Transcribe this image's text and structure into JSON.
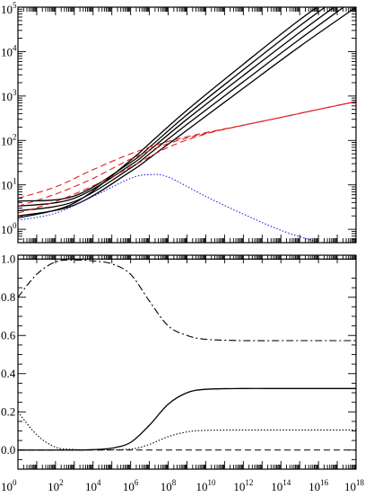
{
  "chart_data": [
    {
      "type": "line",
      "panel": "top",
      "title": "",
      "xlabel": "",
      "ylabel": "",
      "xscale": "log",
      "yscale": "log",
      "xlim": [
        1,
        1e+18
      ],
      "ylim": [
        0.5,
        100000
      ],
      "x_tick_labels": [],
      "y_tick_labels": [
        {
          "value": 1,
          "base": "10",
          "exp": "0"
        },
        {
          "value": 10,
          "base": "10",
          "exp": "1"
        },
        {
          "value": 100,
          "base": "10",
          "exp": "2"
        },
        {
          "value": 1000,
          "base": "10",
          "exp": "3"
        },
        {
          "value": 10000,
          "base": "10",
          "exp": "4"
        },
        {
          "value": 100000,
          "base": "10",
          "exp": "5"
        }
      ],
      "grid": false,
      "series": [
        {
          "style": "solid",
          "color": "#000000",
          "x": [
            1,
            1000.0,
            1000000.0,
            10000000.0,
            1000000000.0,
            1000000000000.0,
            1000000000000000.0,
            1e+18
          ],
          "y": [
            2.0,
            3.5,
            20,
            40,
            170,
            1500,
            13000,
            100000
          ]
        },
        {
          "style": "solid",
          "color": "#000000",
          "x": [
            1,
            1000.0,
            1000000.0,
            10000000.0,
            1000000000.0,
            1000000000000.0,
            1000000000000000.0,
            1e+18
          ],
          "y": [
            2.6,
            4.2,
            24,
            50,
            230,
            2100,
            19000,
            160000
          ]
        },
        {
          "style": "solid",
          "color": "#000000",
          "x": [
            1,
            1000.0,
            1000000.0,
            10000000.0,
            1000000000.0,
            1000000000000.0,
            1000000000000000.0,
            1e+18
          ],
          "y": [
            3.3,
            5.0,
            28,
            60,
            300,
            2900,
            27000,
            230000
          ]
        },
        {
          "style": "solid",
          "color": "#000000",
          "x": [
            1,
            1000.0,
            1000000.0,
            10000000.0,
            1000000000.0,
            1000000000000.0,
            1000000000000000.0,
            1e+18
          ],
          "y": [
            4.3,
            5.6,
            32,
            70,
            380,
            3900,
            38000,
            320000
          ]
        },
        {
          "style": "solid",
          "color": "#000000",
          "x": [
            1,
            1000.0,
            1000000.0,
            10000000.0,
            1000000000.0,
            1000000000000.0,
            1000000000000000.0,
            1e+18
          ],
          "y": [
            1.8,
            3.9,
            36,
            85,
            480,
            5200,
            52000,
            420000
          ]
        },
        {
          "style": "dashed",
          "color": "#e02020",
          "x": [
            1,
            100.0,
            10000.0,
            1000000.0,
            100000000.0,
            10000000000.0,
            1000000000000.0,
            100000000000000.0,
            1e+16,
            1e+18
          ],
          "y": [
            5.0,
            9.0,
            22,
            50,
            95,
            150,
            220,
            330,
            500,
            750
          ]
        },
        {
          "style": "dashed",
          "color": "#e02020",
          "x": [
            1,
            100.0,
            10000.0,
            1000000.0,
            100000000.0,
            10000000000.0,
            1000000000000.0,
            100000000000000.0,
            1e+16,
            1e+18
          ],
          "y": [
            3.3,
            6.2,
            14,
            38,
            85,
            145,
            220,
            330,
            500,
            750
          ]
        },
        {
          "style": "dashed",
          "color": "#e02020",
          "x": [
            1,
            100.0,
            10000.0,
            1000000.0,
            100000000.0,
            10000000000.0,
            1000000000000.0,
            100000000000000.0,
            1e+16,
            1e+18
          ],
          "y": [
            2.3,
            4.2,
            9.5,
            25,
            70,
            140,
            220,
            330,
            500,
            750
          ]
        },
        {
          "style": "dotted",
          "color": "#2020e0",
          "x": [
            1,
            100.0,
            10000.0,
            1000000.0,
            10000000.0,
            100000000.0,
            10000000000.0,
            1000000000000.0,
            100000000000000.0,
            1e+16,
            1e+17
          ],
          "y": [
            1.6,
            2.3,
            5.5,
            14,
            17,
            15,
            5.5,
            2.2,
            0.95,
            0.5,
            0.33
          ]
        }
      ]
    },
    {
      "type": "line",
      "panel": "bottom",
      "title": "",
      "xlabel": "",
      "ylabel": "",
      "xscale": "log",
      "yscale": "linear",
      "xlim": [
        1,
        1e+18
      ],
      "ylim": [
        -0.1,
        1.02
      ],
      "x_tick_labels": [
        {
          "value": 1,
          "base": "10",
          "exp": "0"
        },
        {
          "value": 100,
          "base": "10",
          "exp": "2"
        },
        {
          "value": 10000,
          "base": "10",
          "exp": "4"
        },
        {
          "value": 1000000,
          "base": "10",
          "exp": "6"
        },
        {
          "value": 100000000,
          "base": "10",
          "exp": "8"
        },
        {
          "value": 10000000000,
          "base": "10",
          "exp": "10"
        },
        {
          "value": 1000000000000,
          "base": "10",
          "exp": "12"
        },
        {
          "value": 100000000000000,
          "base": "10",
          "exp": "14"
        },
        {
          "value": 10000000000000000,
          "base": "10",
          "exp": "16"
        },
        {
          "value": 1000000000000000000,
          "base": "10",
          "exp": "18"
        }
      ],
      "y_tick_labels": [
        {
          "value": 0.0,
          "text": "0.0"
        },
        {
          "value": 0.2,
          "text": "0.2"
        },
        {
          "value": 0.4,
          "text": "0.4"
        },
        {
          "value": 0.6,
          "text": "0.6"
        },
        {
          "value": 0.8,
          "text": "0.8"
        },
        {
          "value": 1.0,
          "text": "1.0"
        }
      ],
      "grid": false,
      "series": [
        {
          "style": "solid",
          "color": "#000000",
          "x": [
            1,
            1e+18
          ],
          "y": [
            1.0,
            1.0
          ]
        },
        {
          "style": "dashdot",
          "color": "#000000",
          "x": [
            1,
            10.0,
            100.0,
            1000.0,
            10000.0,
            100000.0,
            1000000.0,
            10000000.0,
            100000000.0,
            1000000000.0,
            10000000000.0,
            1000000000000.0,
            100000000000000.0,
            1e+16,
            1e+18
          ],
          "y": [
            0.8,
            0.92,
            0.985,
            0.995,
            0.99,
            0.975,
            0.92,
            0.78,
            0.65,
            0.6,
            0.58,
            0.573,
            0.573,
            0.573,
            0.573
          ]
        },
        {
          "style": "solid",
          "color": "#000000",
          "x": [
            1,
            100.0,
            1000.0,
            10000.0,
            100000.0,
            1000000.0,
            10000000.0,
            100000000.0,
            1000000000.0,
            10000000000.0,
            1000000000000.0,
            100000000000000.0,
            1e+16,
            1e+18
          ],
          "y": [
            0.0,
            0.0,
            0.0,
            0.002,
            0.01,
            0.04,
            0.13,
            0.24,
            0.3,
            0.318,
            0.322,
            0.322,
            0.322,
            0.322
          ]
        },
        {
          "style": "dotted",
          "color": "#000000",
          "x": [
            1,
            10.0,
            100.0,
            1000.0,
            10000.0,
            1000000.0,
            10000000.0,
            100000000.0,
            1000000000.0,
            10000000000.0,
            1000000000000.0,
            100000000000000.0,
            1e+16,
            1e+18
          ],
          "y": [
            0.2,
            0.08,
            0.015,
            0.003,
            0.001,
            0.005,
            0.03,
            0.07,
            0.095,
            0.103,
            0.105,
            0.105,
            0.105,
            0.105
          ]
        },
        {
          "style": "dashed",
          "color": "#000000",
          "x": [
            1,
            1e+18
          ],
          "y": [
            0.0,
            0.0
          ]
        }
      ]
    }
  ]
}
